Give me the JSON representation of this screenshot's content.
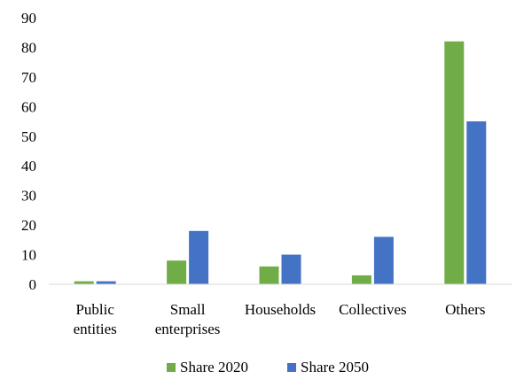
{
  "chart_data": {
    "type": "bar",
    "title": "",
    "xlabel": "",
    "ylabel": "",
    "ylim": [
      0,
      90
    ],
    "yticks": [
      0,
      10,
      20,
      30,
      40,
      50,
      60,
      70,
      80,
      90
    ],
    "grid": false,
    "legend_position": "bottom",
    "categories": [
      [
        "Public",
        "entities"
      ],
      [
        "Small",
        "enterprises"
      ],
      [
        "Households"
      ],
      [
        "Collectives"
      ],
      [
        "Others"
      ]
    ],
    "series": [
      {
        "name": "Share 2020",
        "color": "#70ad47",
        "values": [
          1,
          8,
          6,
          3,
          82
        ]
      },
      {
        "name": "Share 2050",
        "color": "#4472c4",
        "values": [
          1,
          18,
          10,
          16,
          55
        ]
      }
    ]
  }
}
